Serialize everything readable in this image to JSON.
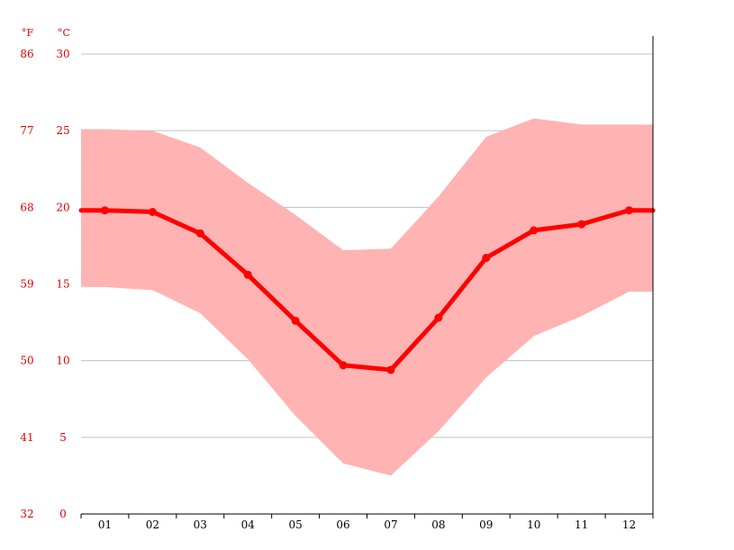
{
  "chart_data": {
    "type": "line",
    "title": "",
    "xlabel": "",
    "ylabel": "",
    "unit_f": "°F",
    "unit_c": "°C",
    "categories": [
      "01",
      "02",
      "03",
      "04",
      "05",
      "06",
      "07",
      "08",
      "09",
      "10",
      "11",
      "12"
    ],
    "y_ticks_c": [
      "30",
      "25",
      "20",
      "15",
      "10",
      "5",
      "0"
    ],
    "y_ticks_f": [
      "86",
      "77",
      "68",
      "59",
      "50",
      "41",
      "32"
    ],
    "ylim": [
      0,
      30
    ],
    "grid": true,
    "series": [
      {
        "role": "average",
        "values": [
          19.8,
          19.7,
          18.3,
          15.6,
          12.6,
          9.7,
          9.4,
          12.8,
          16.7,
          18.5,
          18.9,
          19.8
        ]
      },
      {
        "role": "max",
        "values": [
          25.1,
          25.0,
          23.9,
          21.6,
          19.5,
          17.2,
          17.3,
          20.7,
          24.6,
          25.8,
          25.4,
          25.4
        ]
      },
      {
        "role": "min",
        "values": [
          14.8,
          14.6,
          13.1,
          10.1,
          6.4,
          3.3,
          2.5,
          5.4,
          8.9,
          11.6,
          12.9,
          14.5
        ]
      }
    ],
    "colors": {
      "line": "#ff0000",
      "band": "#ffb3b3",
      "grid": "#c0c0c0",
      "axis": "#000000",
      "labels": "#e00000"
    }
  }
}
